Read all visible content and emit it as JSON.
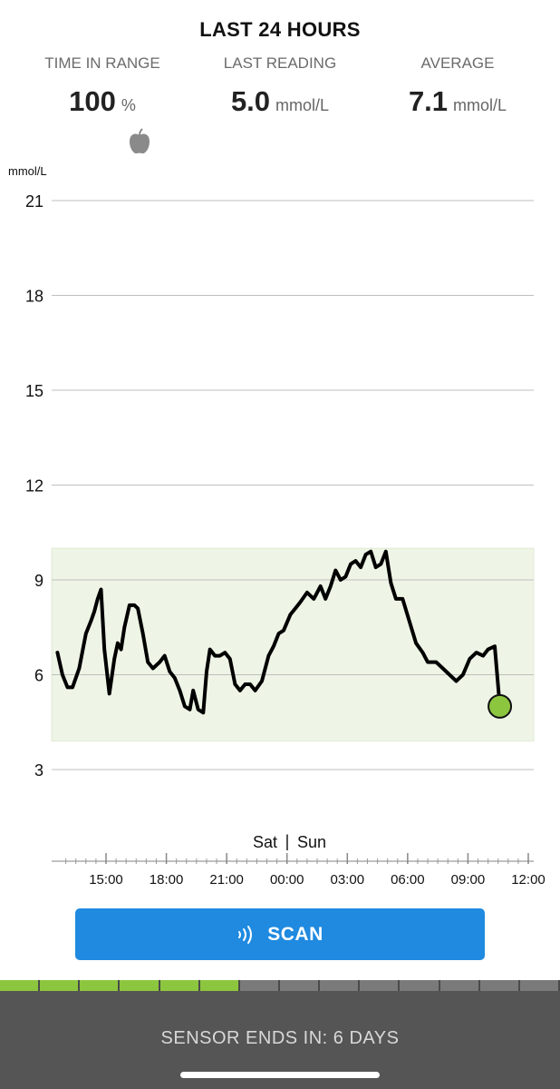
{
  "header": {
    "title": "LAST 24 HOURS"
  },
  "stats": {
    "time_in_range": {
      "label": "TIME IN RANGE",
      "value": "100",
      "unit": "%"
    },
    "last_reading": {
      "label": "LAST READING",
      "value": "5.0",
      "unit": "mmol/L"
    },
    "average": {
      "label": "AVERAGE",
      "value": "7.1",
      "unit": "mmol/L"
    }
  },
  "icons": {
    "food_marker": "apple-icon",
    "scan": "nfc-wave-icon"
  },
  "chart_data": {
    "type": "line",
    "ylabel": "mmol/L",
    "ylim": [
      1.5,
      22.5
    ],
    "yticks": [
      21,
      18,
      15,
      12,
      9,
      6,
      3
    ],
    "xlim": [
      "12:35",
      "12:15"
    ],
    "xticks": [
      "15:00",
      "18:00",
      "21:00",
      "00:00",
      "03:00",
      "06:00",
      "09:00",
      "12:00"
    ],
    "day_labels": {
      "before": "Sat",
      "after": "Sun"
    },
    "target_range": [
      3.9,
      10.0
    ],
    "grid": true,
    "series": [
      {
        "values": [
          [
            "12:35",
            6.7
          ],
          [
            "12:50",
            6.0
          ],
          [
            "13:05",
            5.6
          ],
          [
            "13:20",
            5.6
          ],
          [
            "13:40",
            6.2
          ],
          [
            "14:00",
            7.3
          ],
          [
            "14:15",
            7.7
          ],
          [
            "14:25",
            8.0
          ],
          [
            "14:35",
            8.4
          ],
          [
            "14:45",
            8.7
          ],
          [
            "14:55",
            6.8
          ],
          [
            "15:10",
            5.4
          ],
          [
            "15:25",
            6.5
          ],
          [
            "15:35",
            7.0
          ],
          [
            "15:45",
            6.8
          ],
          [
            "15:55",
            7.5
          ],
          [
            "16:10",
            8.2
          ],
          [
            "16:25",
            8.2
          ],
          [
            "16:35",
            8.1
          ],
          [
            "16:50",
            7.3
          ],
          [
            "17:05",
            6.4
          ],
          [
            "17:20",
            6.2
          ],
          [
            "17:40",
            6.4
          ],
          [
            "17:55",
            6.6
          ],
          [
            "18:10",
            6.1
          ],
          [
            "18:25",
            5.9
          ],
          [
            "18:40",
            5.5
          ],
          [
            "18:55",
            5.0
          ],
          [
            "19:10",
            4.9
          ],
          [
            "19:20",
            5.5
          ],
          [
            "19:35",
            4.9
          ],
          [
            "19:50",
            4.8
          ],
          [
            "20:00",
            6.1
          ],
          [
            "20:10",
            6.8
          ],
          [
            "20:25",
            6.6
          ],
          [
            "20:40",
            6.6
          ],
          [
            "20:55",
            6.7
          ],
          [
            "21:10",
            6.5
          ],
          [
            "21:25",
            5.7
          ],
          [
            "21:40",
            5.5
          ],
          [
            "21:55",
            5.7
          ],
          [
            "22:10",
            5.7
          ],
          [
            "22:25",
            5.5
          ],
          [
            "22:45",
            5.8
          ],
          [
            "23:05",
            6.6
          ],
          [
            "23:20",
            6.9
          ],
          [
            "23:35",
            7.3
          ],
          [
            "23:50",
            7.4
          ],
          [
            "00:10",
            7.9
          ],
          [
            "00:25",
            8.1
          ],
          [
            "00:40",
            8.3
          ],
          [
            "01:00",
            8.6
          ],
          [
            "01:20",
            8.4
          ],
          [
            "01:40",
            8.8
          ],
          [
            "01:55",
            8.4
          ],
          [
            "02:10",
            8.8
          ],
          [
            "02:25",
            9.3
          ],
          [
            "02:40",
            9.0
          ],
          [
            "02:55",
            9.1
          ],
          [
            "03:10",
            9.5
          ],
          [
            "03:25",
            9.6
          ],
          [
            "03:40",
            9.4
          ],
          [
            "03:55",
            9.8
          ],
          [
            "04:10",
            9.9
          ],
          [
            "04:25",
            9.4
          ],
          [
            "04:40",
            9.5
          ],
          [
            "04:55",
            9.9
          ],
          [
            "05:10",
            8.9
          ],
          [
            "05:25",
            8.4
          ],
          [
            "05:45",
            8.4
          ],
          [
            "06:05",
            7.7
          ],
          [
            "06:25",
            7.0
          ],
          [
            "06:45",
            6.7
          ],
          [
            "07:00",
            6.4
          ],
          [
            "07:25",
            6.4
          ],
          [
            "07:45",
            6.2
          ],
          [
            "08:05",
            6.0
          ],
          [
            "08:25",
            5.8
          ],
          [
            "08:45",
            6.0
          ],
          [
            "09:05",
            6.5
          ],
          [
            "09:25",
            6.7
          ],
          [
            "09:45",
            6.6
          ],
          [
            "10:00",
            6.8
          ],
          [
            "10:20",
            6.9
          ],
          [
            "10:35",
            5.0
          ]
        ],
        "last_point": [
          "10:35",
          5.0
        ]
      }
    ]
  },
  "scan_button": {
    "label": "SCAN"
  },
  "sensor": {
    "segments_total": 14,
    "segments_used": 6,
    "status_text": "SENSOR ENDS IN: 6 DAYS"
  }
}
